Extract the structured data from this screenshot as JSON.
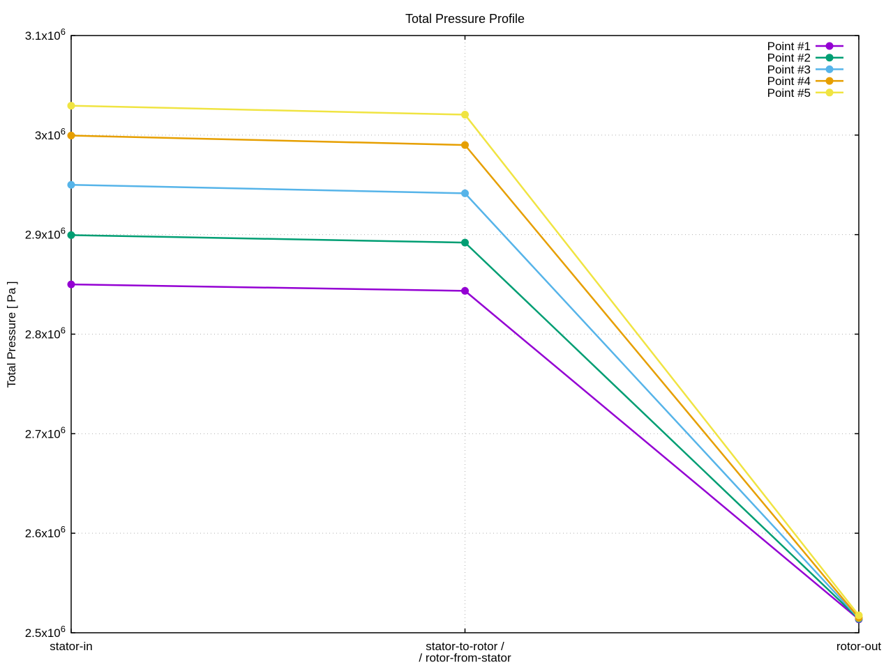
{
  "chart_data": {
    "type": "line",
    "title": "Total Pressure Profile",
    "ylabel": "Total Pressure [ Pa ]",
    "categories": [
      "stator-in",
      "stator-to-rotor /\n/ rotor-from-stator",
      "rotor-out"
    ],
    "ylim": [
      2500000,
      3100000
    ],
    "y_ticks": [
      {
        "value": 2500000,
        "label": "2.5x10^6"
      },
      {
        "value": 2600000,
        "label": "2.6x10^6"
      },
      {
        "value": 2700000,
        "label": "2.7x10^6"
      },
      {
        "value": 2800000,
        "label": "2.8x10^6"
      },
      {
        "value": 2900000,
        "label": "2.9x10^6"
      },
      {
        "value": 3000000,
        "label": "3x10^6"
      },
      {
        "value": 3100000,
        "label": "3.1x10^6"
      }
    ],
    "grid": true,
    "legend_position": "top-right",
    "series": [
      {
        "name": "Point #1",
        "color": "#9400d3",
        "values": [
          2850000,
          2843500,
          2513500
        ]
      },
      {
        "name": "Point #2",
        "color": "#009e73",
        "values": [
          2899500,
          2892000,
          2514000
        ]
      },
      {
        "name": "Point #3",
        "color": "#56b4e9",
        "values": [
          2950000,
          2941500,
          2514500
        ]
      },
      {
        "name": "Point #4",
        "color": "#e69f00",
        "values": [
          2999500,
          2990000,
          2515000
        ]
      },
      {
        "name": "Point #5",
        "color": "#f0e442",
        "values": [
          3029500,
          3020500,
          2517500
        ]
      }
    ],
    "colors": {
      "grid": "#b0b0b0",
      "axis": "#000000",
      "background": "#ffffff"
    }
  }
}
